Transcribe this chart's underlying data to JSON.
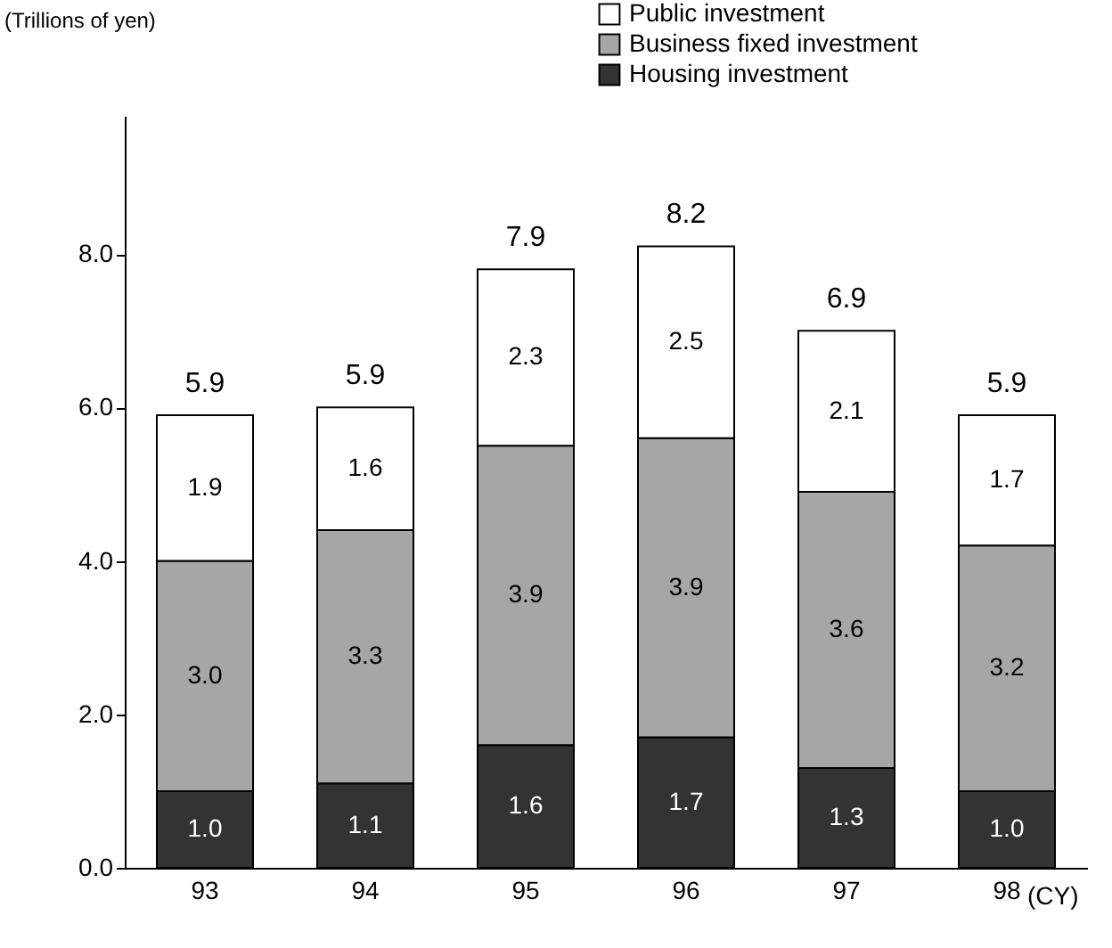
{
  "chart_data": {
    "type": "bar",
    "stacked": true,
    "ylabel": "(Trillions of yen)",
    "xlabel": "(CY)",
    "categories": [
      "93",
      "94",
      "95",
      "96",
      "97",
      "98"
    ],
    "series": [
      {
        "name": "Housing investment",
        "color": "#333333",
        "values": [
          1.0,
          1.1,
          1.6,
          1.7,
          1.3,
          1.0
        ],
        "value_labels": [
          "1.0",
          "1.1",
          "1.6",
          "1.7",
          "1.3",
          "1.0"
        ]
      },
      {
        "name": "Business fixed investment",
        "color": "#a6a6a6",
        "values": [
          3.0,
          3.3,
          3.9,
          3.9,
          3.6,
          3.2
        ],
        "value_labels": [
          "3.0",
          "3.3",
          "3.9",
          "3.9",
          "3.6",
          "3.2"
        ]
      },
      {
        "name": "Public investment",
        "color": "#ffffff",
        "values": [
          1.9,
          1.6,
          2.3,
          2.5,
          2.1,
          1.7
        ],
        "value_labels": [
          "1.9",
          "1.6",
          "2.3",
          "2.5",
          "2.1",
          "1.7"
        ]
      }
    ],
    "totals": [
      "5.9",
      "5.9",
      "7.9",
      "8.2",
      "6.9",
      "5.9"
    ],
    "ylim": [
      0,
      9.8
    ],
    "yticks": [
      {
        "value": 0,
        "label": "0.0"
      },
      {
        "value": 2,
        "label": "2.0"
      },
      {
        "value": 4,
        "label": "4.0"
      },
      {
        "value": 6,
        "label": "6.0"
      },
      {
        "value": 8,
        "label": "8.0"
      }
    ],
    "grid": false,
    "legend": "top right"
  }
}
